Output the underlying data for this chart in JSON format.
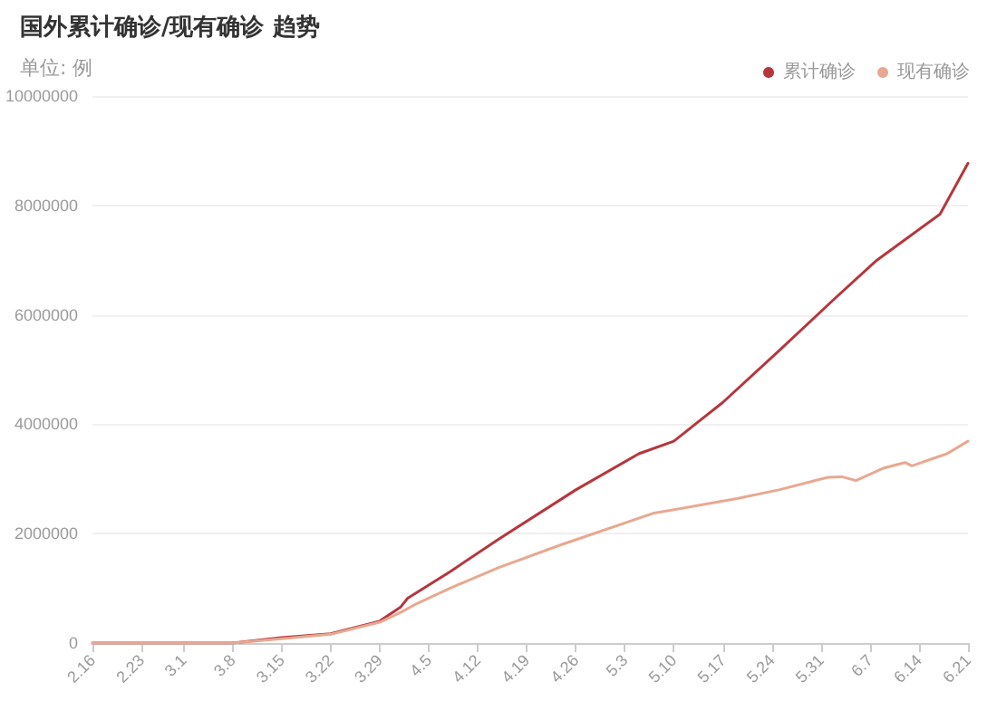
{
  "chart_data": {
    "type": "line",
    "title": "国外累计确诊/现有确诊 趋势",
    "subtitle": "单位: 例",
    "xlim": [
      "--02-16",
      "--06-21"
    ],
    "xticks": [
      {
        "value": "--02-16",
        "label": "2.16"
      },
      {
        "value": "--02-23",
        "label": "2.23"
      },
      {
        "value": "--03-01",
        "label": "3.1"
      },
      {
        "value": "--03-08",
        "label": "3.8"
      },
      {
        "value": "--03-15",
        "label": "3.15"
      },
      {
        "value": "--03-22",
        "label": "3.22"
      },
      {
        "value": "--03-29",
        "label": "3.29"
      },
      {
        "value": "--04-05",
        "label": "4.5"
      },
      {
        "value": "--04-12",
        "label": "4.12"
      },
      {
        "value": "--04-19",
        "label": "4.19"
      },
      {
        "value": "--04-26",
        "label": "4.26"
      },
      {
        "value": "--05-03",
        "label": "5.3"
      },
      {
        "value": "--05-10",
        "label": "5.10"
      },
      {
        "value": "--05-17",
        "label": "5.17"
      },
      {
        "value": "--05-24",
        "label": "5.24"
      },
      {
        "value": "--05-31",
        "label": "5.31"
      },
      {
        "value": "--06-07",
        "label": "6.7"
      },
      {
        "value": "--06-14",
        "label": "6.14"
      },
      {
        "value": "--06-21",
        "label": "6.21"
      }
    ],
    "ylim": [
      0,
      10000000
    ],
    "yticks": [
      0,
      2000000,
      4000000,
      6000000,
      8000000,
      10000000
    ],
    "grid": "y",
    "legend": "top right",
    "marker": "none",
    "line_style": "solid",
    "series": [
      {
        "name": "累计确诊",
        "color": "#b5373d",
        "x": [
          "--02-16",
          "--03-08",
          "--03-15",
          "--03-22",
          "--03-29",
          "--04-01",
          "--04-02",
          "--04-08",
          "--04-15",
          "--04-26",
          "--05-05",
          "--05-10",
          "--05-17",
          "--05-25",
          "--06-02",
          "--06-08",
          "--06-17",
          "--06-21"
        ],
        "values": [
          0,
          0,
          100000,
          170000,
          400000,
          660000,
          820000,
          1300000,
          1900000,
          2800000,
          3460000,
          3690000,
          4400000,
          5340000,
          6300000,
          7000000,
          7840000,
          8770000
        ]
      },
      {
        "name": "现有确诊",
        "color": "#e8a890",
        "x": [
          "--02-16",
          "--03-08",
          "--03-15",
          "--03-22",
          "--03-29",
          "--04-01",
          "--04-03",
          "--04-08",
          "--04-15",
          "--04-24",
          "--05-07",
          "--05-19",
          "--05-25",
          "--06-01",
          "--06-03",
          "--06-05",
          "--06-09",
          "--06-12",
          "--06-13",
          "--06-18",
          "--06-21"
        ],
        "values": [
          0,
          0,
          80000,
          160000,
          380000,
          560000,
          700000,
          1000000,
          1380000,
          1800000,
          2370000,
          2640000,
          2800000,
          3030000,
          3040000,
          2970000,
          3200000,
          3300000,
          3240000,
          3460000,
          3690000
        ]
      }
    ]
  }
}
